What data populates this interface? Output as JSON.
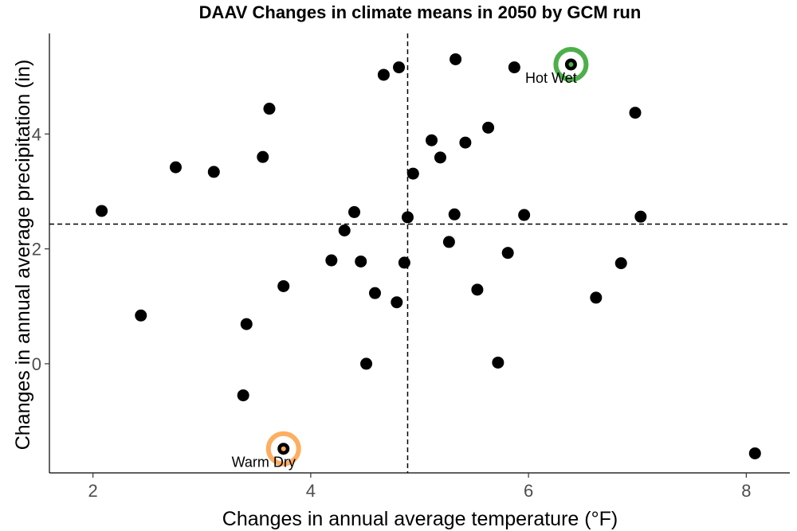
{
  "chart_data": {
    "type": "scatter",
    "title": "DAAV Changes in climate means in 2050 by GCM run",
    "xlabel": "Changes in annual average temperature (°F)",
    "ylabel": "Changes in annual average precipitation (in)",
    "xlim": [
      1.6,
      8.4
    ],
    "ylim": [
      -1.9,
      5.75
    ],
    "xticks": [
      2,
      4,
      6,
      8
    ],
    "yticks": [
      0,
      2,
      4
    ],
    "grid": false,
    "reference_lines": {
      "x": 4.89,
      "y": 2.43
    },
    "points": [
      {
        "x": 2.08,
        "y": 2.66
      },
      {
        "x": 2.44,
        "y": 0.84
      },
      {
        "x": 2.76,
        "y": 3.42
      },
      {
        "x": 3.11,
        "y": 3.34
      },
      {
        "x": 3.38,
        "y": -0.55
      },
      {
        "x": 3.41,
        "y": 0.69
      },
      {
        "x": 3.56,
        "y": 3.6
      },
      {
        "x": 3.62,
        "y": 4.44
      },
      {
        "x": 3.75,
        "y": 1.35
      },
      {
        "x": 4.19,
        "y": 1.8
      },
      {
        "x": 4.31,
        "y": 2.32
      },
      {
        "x": 4.4,
        "y": 2.64
      },
      {
        "x": 4.46,
        "y": 1.78
      },
      {
        "x": 4.51,
        "y": 0.0
      },
      {
        "x": 4.59,
        "y": 1.23
      },
      {
        "x": 4.67,
        "y": 5.03
      },
      {
        "x": 4.79,
        "y": 1.07
      },
      {
        "x": 4.81,
        "y": 5.16
      },
      {
        "x": 4.86,
        "y": 1.76
      },
      {
        "x": 4.89,
        "y": 2.55
      },
      {
        "x": 4.94,
        "y": 3.31
      },
      {
        "x": 5.11,
        "y": 3.89
      },
      {
        "x": 5.19,
        "y": 3.59
      },
      {
        "x": 5.27,
        "y": 2.12
      },
      {
        "x": 5.32,
        "y": 2.6
      },
      {
        "x": 5.33,
        "y": 5.3
      },
      {
        "x": 5.42,
        "y": 3.85
      },
      {
        "x": 5.53,
        "y": 1.29
      },
      {
        "x": 5.63,
        "y": 4.11
      },
      {
        "x": 5.72,
        "y": 0.02
      },
      {
        "x": 5.81,
        "y": 1.93
      },
      {
        "x": 5.87,
        "y": 5.16
      },
      {
        "x": 5.96,
        "y": 2.59
      },
      {
        "x": 6.39,
        "y": 5.21
      },
      {
        "x": 6.62,
        "y": 1.15
      },
      {
        "x": 6.85,
        "y": 1.75
      },
      {
        "x": 6.98,
        "y": 4.37
      },
      {
        "x": 7.03,
        "y": 2.56
      },
      {
        "x": 8.08,
        "y": -1.56
      },
      {
        "x": 3.75,
        "y": -1.48
      }
    ],
    "highlights": [
      {
        "label": "Hot Wet",
        "x": 6.39,
        "y": 5.21,
        "color": "#4daf4a"
      },
      {
        "label": "Warm Dry",
        "x": 3.75,
        "y": -1.48,
        "color": "#fdae61"
      }
    ]
  }
}
